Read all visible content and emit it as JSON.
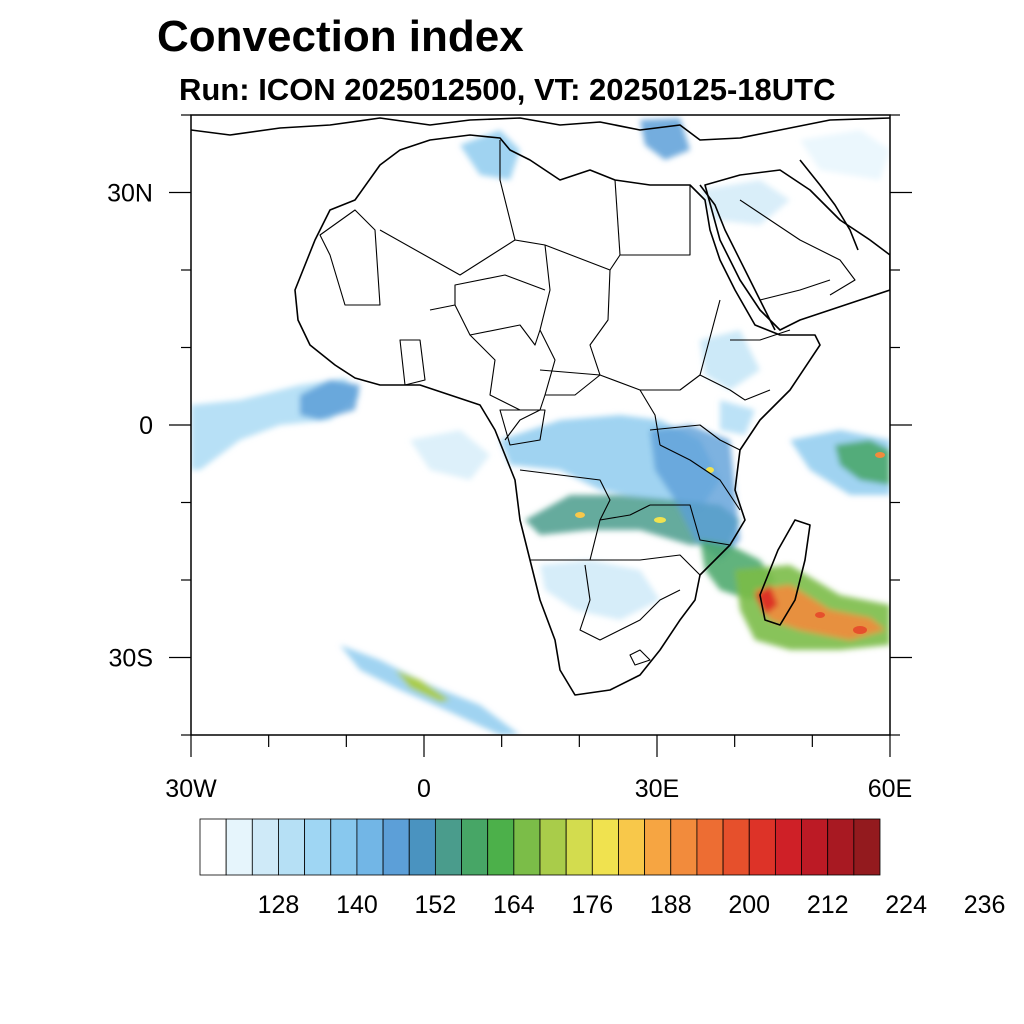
{
  "title": "Convection index",
  "subtitle": "Run: ICON 2025012500,  VT: 20250125-18UTC",
  "map": {
    "lat_labels": [
      {
        "text": "30N",
        "lat": 30
      },
      {
        "text": "0",
        "lat": 0
      },
      {
        "text": "30S",
        "lat": -30
      }
    ],
    "lon_labels": [
      {
        "text": "30W",
        "lon": -30
      },
      {
        "text": "0",
        "lon": 0
      },
      {
        "text": "30E",
        "lon": 30
      },
      {
        "text": "60E",
        "lon": 60
      }
    ],
    "lon_range": [
      -30,
      60
    ],
    "lat_range": [
      -40,
      40
    ]
  },
  "colorbar": {
    "labels": [
      "128",
      "140",
      "152",
      "164",
      "176",
      "188",
      "200",
      "212",
      "224",
      "236"
    ],
    "colors": [
      "#ffffff",
      "#e6f5fc",
      "#cfeaf8",
      "#b6e0f5",
      "#9fd6f3",
      "#88c8ee",
      "#72b6e6",
      "#5c9fd8",
      "#4a93c0",
      "#4a9c8c",
      "#47a666",
      "#4cb04a",
      "#7bbd48",
      "#a9cc4a",
      "#d3dc4e",
      "#f0e24f",
      "#f8c84a",
      "#f6a542",
      "#f28b3c",
      "#ed6d33",
      "#e6502c",
      "#dd3328",
      "#cf2027",
      "#bc1a25",
      "#a81922",
      "#931a1e"
    ]
  }
}
